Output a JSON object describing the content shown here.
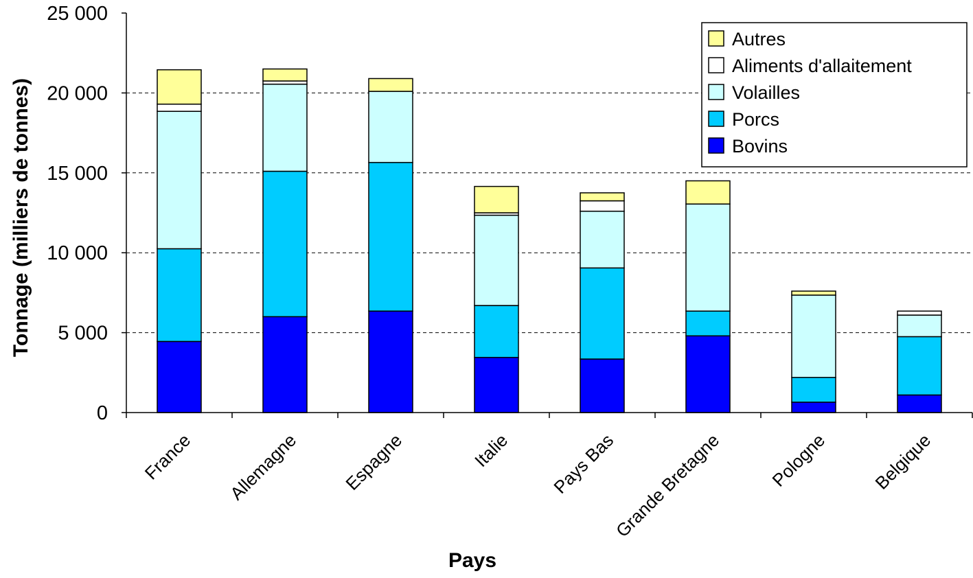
{
  "chart_data": {
    "type": "bar",
    "stacked": true,
    "title": "",
    "xlabel": "Pays",
    "ylabel": "Tonnage (milliers de tonnes)",
    "ylim": [
      0,
      25000
    ],
    "yticks": [
      0,
      5000,
      10000,
      15000,
      20000,
      25000
    ],
    "ytick_labels": [
      "0",
      "5 000",
      "10 000",
      "15 000",
      "20 000",
      "25 000"
    ],
    "grid": "horizontal dashed",
    "legend_position": "top-right",
    "categories": [
      "France",
      "Allemagne",
      "Espagne",
      "Italie",
      "Pays Bas",
      "Grande Bretagne",
      "Pologne",
      "Belgique"
    ],
    "series": [
      {
        "name": "Bovins",
        "color": "#0000ff",
        "values": [
          4450,
          6000,
          6350,
          3450,
          3350,
          4800,
          650,
          1100
        ]
      },
      {
        "name": "Porcs",
        "color": "#00ccff",
        "values": [
          5800,
          9100,
          9300,
          3250,
          5700,
          1550,
          1550,
          3650
        ]
      },
      {
        "name": "Volailles",
        "color": "#ccffff",
        "values": [
          8600,
          5450,
          4450,
          5650,
          3550,
          6700,
          5150,
          1350
        ]
      },
      {
        "name": "Aliments d'allaitement",
        "color": "#ffffff",
        "values": [
          450,
          200,
          0,
          150,
          650,
          0,
          0,
          250
        ]
      },
      {
        "name": "Autres",
        "color": "#ffff99",
        "values": [
          2150,
          750,
          800,
          1650,
          500,
          1450,
          250,
          0
        ]
      }
    ]
  }
}
